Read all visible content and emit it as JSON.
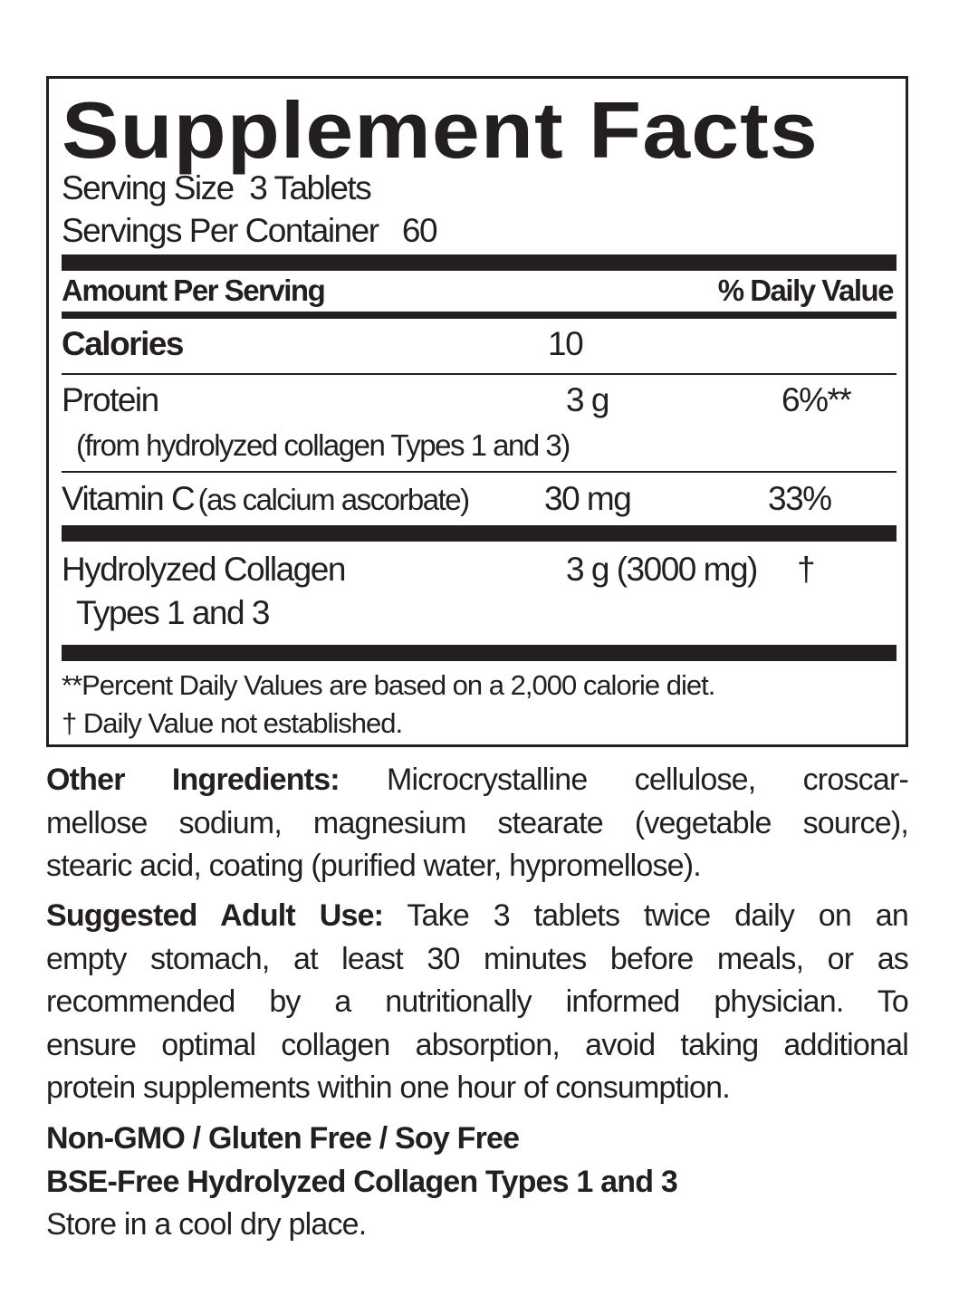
{
  "title": "Supplement Facts",
  "serving_size_label": "Serving Size",
  "serving_size": "3 Tablets",
  "servings_label": "Servings Per Container",
  "servings": "60",
  "header": {
    "amount": "Amount Per Serving",
    "dv": "% Daily Value"
  },
  "rows": [
    {
      "name": "Calories",
      "amount": "10",
      "dv": ""
    },
    {
      "name": "Protein",
      "sub": "(from hydrolyzed collagen Types 1 and 3)",
      "amount": "3 g",
      "dv": "6%**"
    },
    {
      "name": "Vitamin C",
      "sub": "(as calcium ascorbate)",
      "amount": "30 mg",
      "dv": "33%"
    },
    {
      "name": "Hydrolyzed Collagen",
      "sub": "Types 1 and 3",
      "amount": "3 g (3000 mg)",
      "dv": "†"
    }
  ],
  "footnotes": [
    "**Percent Daily Values are based on a 2,000 calorie diet.",
    "† Daily Value not established."
  ],
  "other": {
    "label": "Other Ingredients:",
    "lines": [
      " Microcrystalline cellulose, croscar-",
      "mellose sodium, magnesium stearate (vegetable source),",
      "stearic acid, coating (purified water, hypromellose)."
    ]
  },
  "use": {
    "label": "Suggested Adult Use:",
    "lines": [
      " Take 3 tablets twice daily on an",
      "empty stomach, at least 30 minutes before meals, or as",
      "recommended by a nutritionally informed physician. To",
      "ensure optimal collagen absorption, avoid taking additional",
      "protein supplements within one hour of consumption."
    ]
  },
  "claims": [
    "Non-GMO / Gluten Free / Soy Free",
    "BSE-Free Hydrolyzed Collagen Types 1 and 3"
  ],
  "storage": "Store in a cool dry place."
}
